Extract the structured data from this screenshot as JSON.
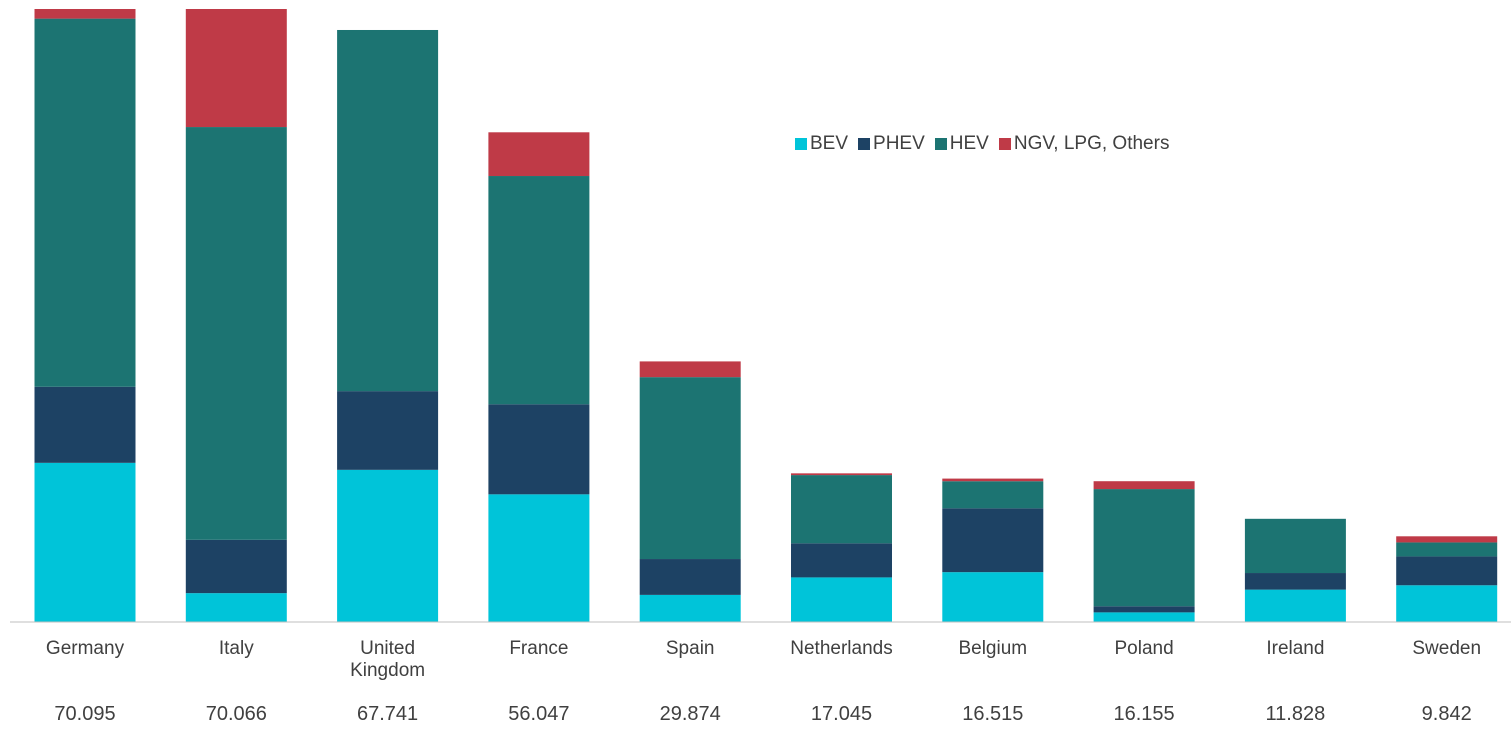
{
  "chart_data": {
    "type": "stacked-bar",
    "categories": [
      "Germany",
      "Italy",
      "United Kingdom",
      "France",
      "Spain",
      "Netherlands",
      "Belgium",
      "Poland",
      "Ireland",
      "Sweden"
    ],
    "series": [
      {
        "name": "BEV",
        "color": "#00c4d9",
        "values": [
          18.2,
          3.3,
          17.4,
          14.6,
          3.1,
          5.1,
          5.7,
          1.1,
          3.7,
          4.2
        ]
      },
      {
        "name": "PHEV",
        "color": "#1d4264",
        "values": [
          8.7,
          6.1,
          9.0,
          10.3,
          4.1,
          3.9,
          7.3,
          0.7,
          1.9,
          3.3
        ]
      },
      {
        "name": "HEV",
        "color": "#1c7472",
        "values": [
          42.1,
          47.2,
          41.3,
          26.1,
          20.8,
          7.8,
          3.1,
          13.4,
          6.2,
          1.6
        ]
      },
      {
        "name": "NGV, LPG, Others",
        "color": "#bf3a47",
        "values": [
          1.1,
          13.5,
          0,
          5.0,
          1.8,
          0.2,
          0.3,
          0.9,
          0,
          0.7
        ]
      }
    ],
    "totals": [
      70.095,
      70.066,
      67.741,
      56.047,
      29.874,
      17.045,
      16.515,
      16.155,
      11.828,
      9.842
    ]
  }
}
